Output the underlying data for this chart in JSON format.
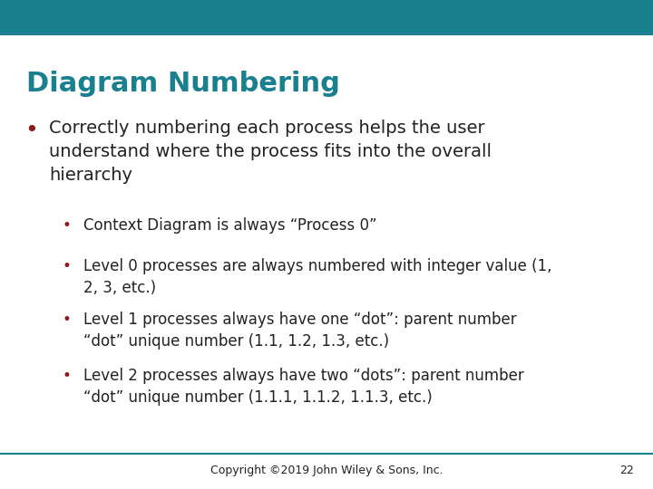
{
  "title": "Diagram Numbering",
  "title_color": "#1a7f8e",
  "header_bar_color": "#1a7f8e",
  "header_bar_height": 0.072,
  "background_color": "#ffffff",
  "bullet_color": "#8b1a1a",
  "main_bullet": "Correctly numbering each process helps the user\nunderstand where the process fits into the overall\nhierarchy",
  "sub_bullets": [
    "Context Diagram is always “Process 0”",
    "Level 0 processes are always numbered with integer value (1,\n2, 3, etc.)",
    "Level 1 processes always have one “dot”: parent number\n“dot” unique number (1.1, 1.2, 1.3, etc.)",
    "Level 2 processes always have two “dots”: parent number\n“dot” unique number (1.1.1, 1.1.2, 1.1.3, etc.)"
  ],
  "footer_text": "Copyright ©2019 John Wiley & Sons, Inc.",
  "footer_page": "22",
  "footer_line_color": "#1a7f8e",
  "text_color": "#222222",
  "title_fontsize": 22,
  "main_bullet_fontsize": 14,
  "sub_bullet_fontsize": 12,
  "footer_fontsize": 9
}
